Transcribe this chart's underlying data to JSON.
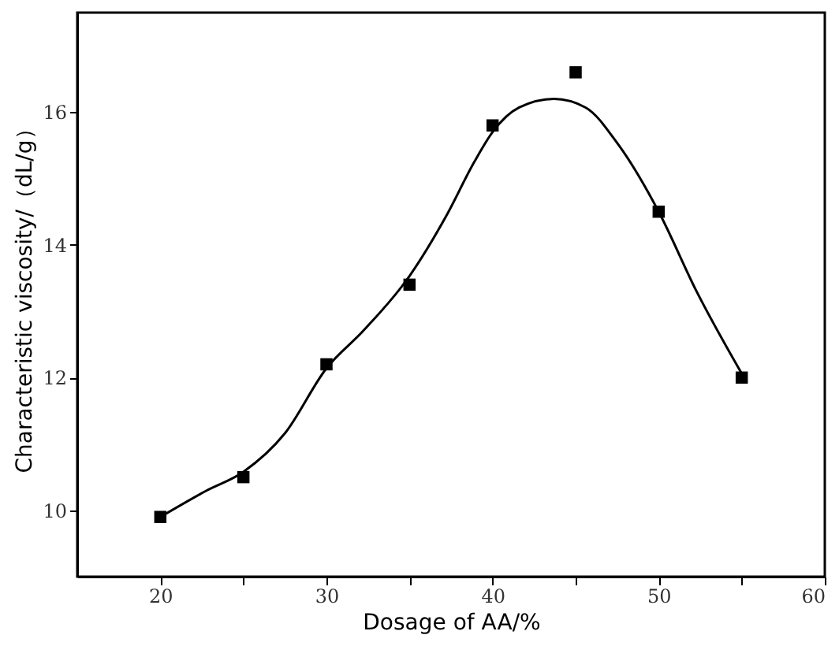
{
  "chart_data": {
    "type": "scatter",
    "xlabel": "Dosage of AA/%",
    "ylabel": "Characteristic viscosity/（dL/g）",
    "xlim": [
      15,
      60
    ],
    "ylim": [
      9,
      17.5
    ],
    "xticks": [
      20,
      {
        "value": 25,
        "label": null
      },
      30,
      {
        "value": 35,
        "label": null
      },
      40,
      {
        "value": 45,
        "label": null
      },
      50,
      {
        "value": 55,
        "label": null
      },
      60
    ],
    "yticks": [
      10,
      12,
      14,
      16
    ],
    "grid": false,
    "series": [
      {
        "marker": "square",
        "color": "#000000",
        "x": [
          20,
          25,
          30,
          35,
          40,
          45,
          50,
          55
        ],
        "values": [
          9.9,
          10.5,
          12.2,
          13.4,
          15.8,
          16.6,
          14.5,
          12.0
        ]
      },
      {
        "type": "line",
        "marker": "none",
        "line_style": "solid",
        "color": "#000000",
        "x": [
          20,
          22.8,
          25,
          27.5,
          30,
          32.2,
          35,
          37.2,
          38.9,
          40,
          41.6,
          43.7,
          45.6,
          47.6,
          50,
          52.3,
          55
        ],
        "values": [
          9.9,
          10.3,
          10.58,
          11.16,
          12.14,
          12.7,
          13.53,
          14.43,
          15.25,
          15.7,
          16.07,
          16.2,
          16.07,
          15.5,
          14.5,
          13.29,
          12.06
        ]
      }
    ]
  }
}
